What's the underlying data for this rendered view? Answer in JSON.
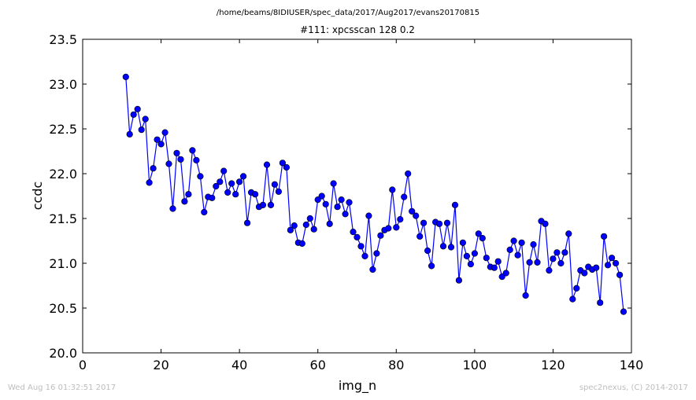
{
  "header": {
    "path": "/home/beams/8IDIUSER/spec_data/2017/Aug2017/evans20170815"
  },
  "footer": {
    "timestamp": "Wed Aug 16 01:32:51 2017",
    "credit": "spec2nexus, (C) 2014-2017"
  },
  "colors": {
    "series": "#0000ff"
  },
  "chart_data": {
    "type": "line",
    "title": "#111: xpcsscan 128 0.2",
    "xlabel": "img_n",
    "ylabel": "ccdc",
    "xlim": [
      0,
      140
    ],
    "ylim": [
      20.0,
      23.5
    ],
    "xticks": [
      "0",
      "20",
      "40",
      "60",
      "80",
      "100",
      "120",
      "140"
    ],
    "yticks": [
      "20.0",
      "20.5",
      "21.0",
      "21.5",
      "22.0",
      "22.5",
      "23.0",
      "23.5"
    ],
    "grid": false,
    "marker": "circle",
    "series": [
      {
        "x": [
          11,
          12,
          13,
          14,
          15,
          16,
          17,
          18,
          19,
          20,
          21,
          22,
          23,
          24,
          25,
          26,
          27,
          28,
          29,
          30,
          31,
          32,
          33,
          34,
          35,
          36,
          37,
          38,
          39,
          40,
          41,
          42,
          43,
          44,
          45,
          46,
          47,
          48,
          49,
          50,
          51,
          52,
          53,
          54,
          55,
          56,
          57,
          58,
          59,
          60,
          61,
          62,
          63,
          64,
          65,
          66,
          67,
          68,
          69,
          70,
          71,
          72,
          73,
          74,
          75,
          76,
          77,
          78,
          79,
          80,
          81,
          82,
          83,
          84,
          85,
          86,
          87,
          88,
          89,
          90,
          91,
          92,
          93,
          94,
          95,
          96,
          97,
          98,
          99,
          100,
          101,
          102,
          103,
          104,
          105,
          106,
          107,
          108,
          109,
          110,
          111,
          112,
          113,
          114,
          115,
          116,
          117,
          118,
          119,
          120,
          121,
          122,
          123,
          124,
          125,
          126,
          127,
          128,
          129,
          130,
          131,
          132,
          133,
          134,
          135,
          136,
          137,
          138
        ],
        "values": [
          23.08,
          22.44,
          22.66,
          22.72,
          22.49,
          22.61,
          21.9,
          22.06,
          22.38,
          22.33,
          22.46,
          22.11,
          21.61,
          22.23,
          22.16,
          21.69,
          21.77,
          22.26,
          22.15,
          21.97,
          21.57,
          21.74,
          21.73,
          21.86,
          21.91,
          22.03,
          21.79,
          21.89,
          21.77,
          21.91,
          21.97,
          21.45,
          21.79,
          21.77,
          21.63,
          21.65,
          22.1,
          21.65,
          21.88,
          21.8,
          22.12,
          22.07,
          21.37,
          21.42,
          21.23,
          21.22,
          21.43,
          21.5,
          21.38,
          21.71,
          21.75,
          21.66,
          21.44,
          21.89,
          21.63,
          21.71,
          21.55,
          21.68,
          21.35,
          21.29,
          21.19,
          21.08,
          21.53,
          20.93,
          21.11,
          21.31,
          21.37,
          21.39,
          21.82,
          21.4,
          21.49,
          21.74,
          22.0,
          21.58,
          21.53,
          21.3,
          21.45,
          21.14,
          20.97,
          21.46,
          21.44,
          21.19,
          21.45,
          21.18,
          21.65,
          20.81,
          21.23,
          21.08,
          20.99,
          21.11,
          21.33,
          21.28,
          21.06,
          20.96,
          20.95,
          21.02,
          20.85,
          20.89,
          21.15,
          21.25,
          21.09,
          21.23,
          20.64,
          21.01,
          21.21,
          21.01,
          21.47,
          21.44,
          20.92,
          21.05,
          21.12,
          21.0,
          21.12,
          21.33,
          20.6,
          20.72,
          20.92,
          20.89,
          20.96,
          20.93,
          20.95,
          20.56,
          21.3,
          20.98,
          21.06,
          21.0,
          20.87,
          20.46
        ]
      }
    ]
  }
}
